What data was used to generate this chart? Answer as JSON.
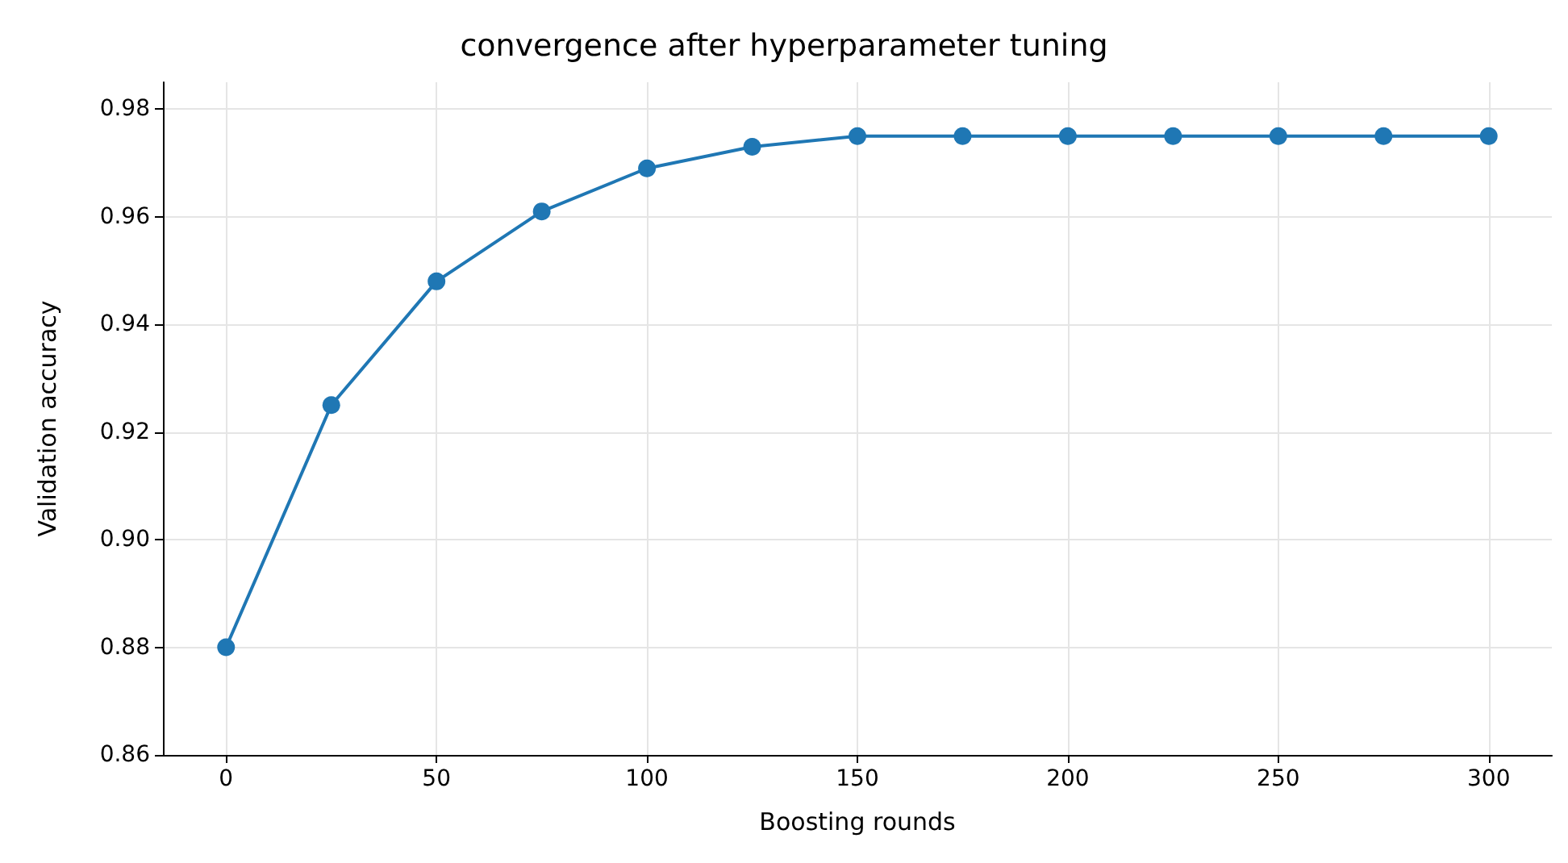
{
  "chart_data": {
    "type": "line",
    "title": "convergence after hyperparameter tuning",
    "xlabel": "Boosting rounds",
    "ylabel": "Validation accuracy",
    "x": [
      0,
      25,
      50,
      75,
      100,
      125,
      150,
      175,
      200,
      225,
      250,
      275,
      300
    ],
    "series": [
      {
        "color": "#1f77b4",
        "values": [
          0.88,
          0.925,
          0.948,
          0.961,
          0.969,
          0.973,
          0.975,
          0.975,
          0.975,
          0.975,
          0.975,
          0.975,
          0.975
        ]
      }
    ],
    "xlim": [
      -15,
      315
    ],
    "xticks": [
      0,
      50,
      100,
      150,
      200,
      250,
      300
    ],
    "ylim": [
      0.86,
      0.985
    ],
    "yticks": [
      {
        "value": 0.86,
        "label": "0.86"
      },
      {
        "value": 0.88,
        "label": "0.88"
      },
      {
        "value": 0.9,
        "label": "0.90"
      },
      {
        "value": 0.92,
        "label": "0.92"
      },
      {
        "value": 0.94,
        "label": "0.94"
      },
      {
        "value": 0.96,
        "label": "0.96"
      },
      {
        "value": 0.98,
        "label": "0.98"
      }
    ],
    "grid": true,
    "marker": "circle",
    "line_style": "solid"
  }
}
